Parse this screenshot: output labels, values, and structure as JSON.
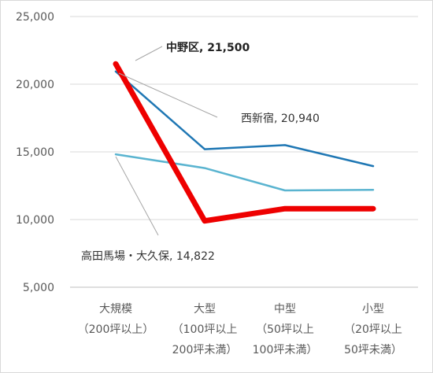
{
  "chart_data": {
    "type": "line",
    "title": "",
    "xlabel": "",
    "ylabel": "",
    "ylim": [
      5000,
      25000
    ],
    "yticks": [
      "5,000",
      "10,000",
      "15,000",
      "20,000",
      "25,000"
    ],
    "grid": true,
    "categories": [
      [
        "大規模",
        "（200坪以上）"
      ],
      [
        "大型",
        "（100坪以上",
        "200坪未満）"
      ],
      [
        "中型",
        "（50坪以上",
        "100坪未満）"
      ],
      [
        "小型",
        "（20坪以上",
        "50坪未満）"
      ]
    ],
    "series": [
      {
        "name": "中野区",
        "values": [
          21500,
          9900,
          10800,
          10800
        ],
        "color": "#ee0000",
        "emphasis": true
      },
      {
        "name": "西新宿",
        "values": [
          20940,
          15200,
          15500,
          13950
        ],
        "color": "#1f77b4"
      },
      {
        "name": "高田馬場・大久保",
        "values": [
          14822,
          13800,
          12150,
          12200
        ],
        "color": "#5ab4d0"
      }
    ],
    "annotations": [
      {
        "text": "中野区, 21,500",
        "bold": true
      },
      {
        "text": "西新宿, 20,940",
        "bold": false
      },
      {
        "text": "高田馬場・大久保, 14,822",
        "bold": false
      }
    ]
  }
}
